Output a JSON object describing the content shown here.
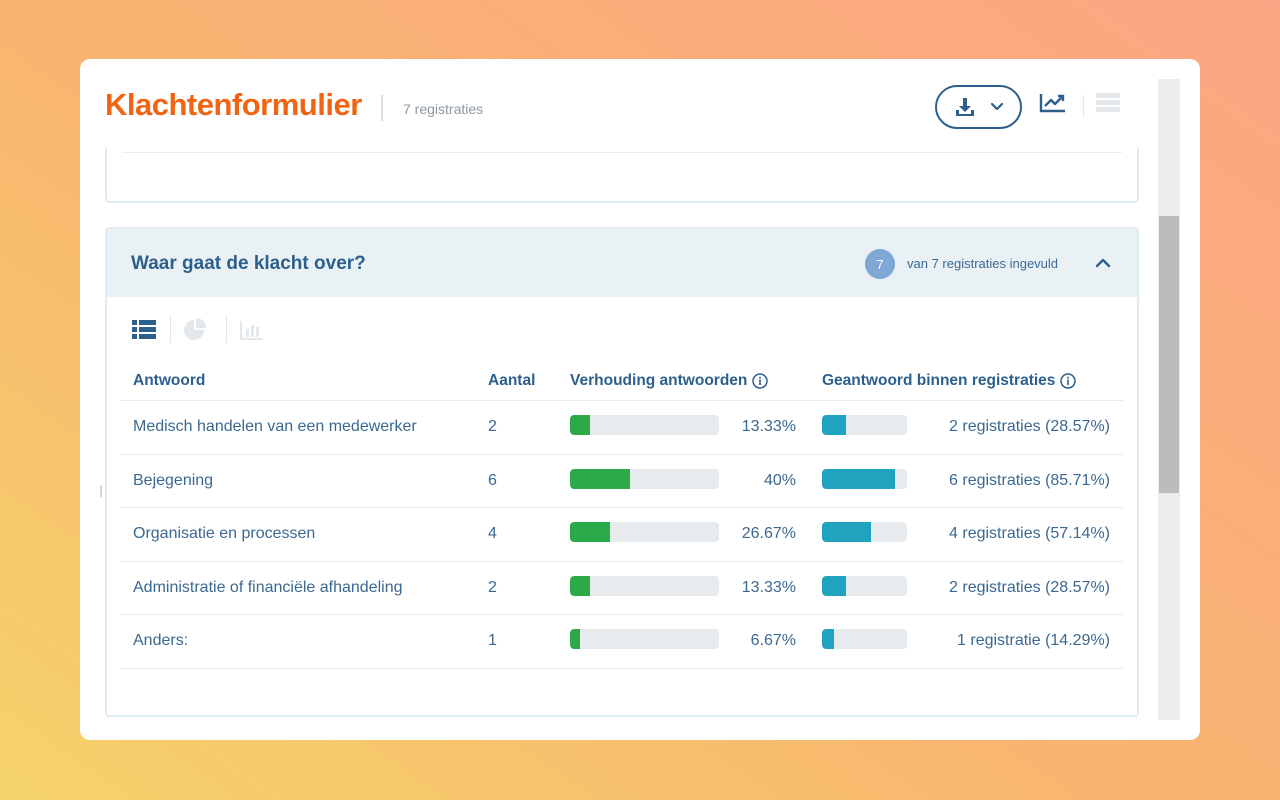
{
  "header": {
    "title": "Klachtenformulier",
    "registrations_count": "7 registraties"
  },
  "toolbar": {
    "download_icon": "download-icon",
    "chevron_icon": "chevron-down-icon",
    "chart_icon": "line-chart-icon",
    "grid_icon": "table-grid-icon"
  },
  "question": {
    "title": "Waar gaat de klacht over?",
    "filled_count": "7",
    "filled_text": "van 7 registraties ingevuld"
  },
  "view_modes": [
    "list",
    "pie",
    "bar"
  ],
  "table": {
    "headers": {
      "answer": "Antwoord",
      "count": "Aantal",
      "ratio": "Verhouding antwoorden",
      "answered": "Geantwoord binnen registraties"
    },
    "rows": [
      {
        "answer": "Medisch handelen van een medewerker",
        "count": "2",
        "ratio_label": "13.33%",
        "ratio": 0.1333,
        "answered_label": "2 registraties (28.57%)",
        "answered": 0.2857
      },
      {
        "answer": "Bejegening",
        "count": "6",
        "ratio_label": "40%",
        "ratio": 0.4,
        "answered_label": "6 registraties (85.71%)",
        "answered": 0.8571
      },
      {
        "answer": "Organisatie en processen",
        "count": "4",
        "ratio_label": "26.67%",
        "ratio": 0.2667,
        "answered_label": "4 registraties (57.14%)",
        "answered": 0.5714
      },
      {
        "answer": "Administratie of financiële afhandeling",
        "count": "2",
        "ratio_label": "13.33%",
        "ratio": 0.1333,
        "answered_label": "2 registraties (28.57%)",
        "answered": 0.2857
      },
      {
        "answer": "Anders:",
        "count": "1",
        "ratio_label": "6.67%",
        "ratio": 0.0667,
        "answered_label": "1 registratie (14.29%)",
        "answered": 0.1429
      }
    ]
  },
  "colors": {
    "brand": "#f06414",
    "primary": "#2d5f8d",
    "ratio_bar": "#2caa48",
    "answered_bar": "#1fa3be",
    "badge": "#7fa8d6"
  }
}
